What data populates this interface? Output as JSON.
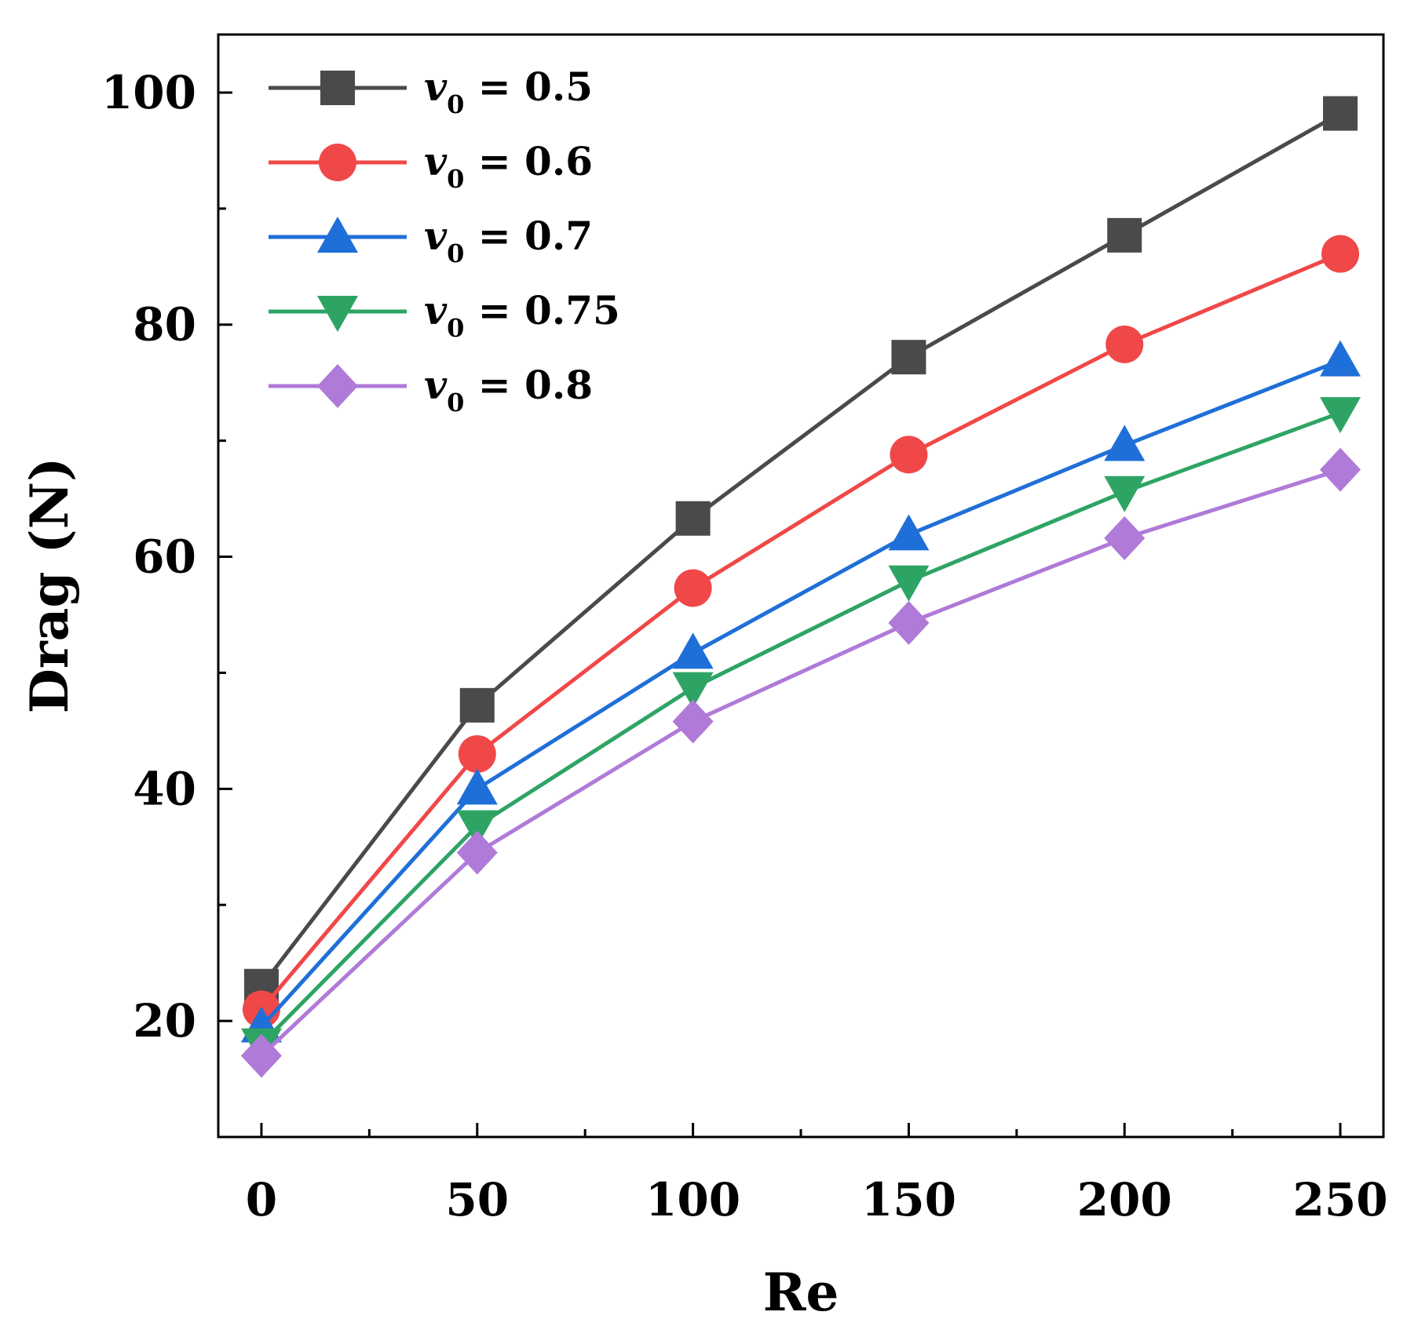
{
  "chart_data": {
    "type": "line",
    "title": "",
    "xlabel": "Re",
    "ylabel": "Drag (N)",
    "xlim": [
      -10,
      260
    ],
    "ylim": [
      10,
      105
    ],
    "x_ticks": [
      0,
      50,
      100,
      150,
      200,
      250
    ],
    "x_minor_ticks": [
      25,
      75,
      125,
      175,
      225
    ],
    "y_ticks": [
      20,
      40,
      60,
      80,
      100
    ],
    "y_minor_ticks": [
      30,
      50,
      70,
      90
    ],
    "grid": false,
    "legend_position": "top-left",
    "legend_prefix": "v",
    "legend_subscript": "0",
    "x": [
      0,
      50,
      100,
      150,
      200,
      250
    ],
    "series": [
      {
        "name": "v0 = 0.5",
        "label_value": "= 0.5",
        "color": "#4a4a4a",
        "marker": "square",
        "values": [
          23.0,
          47.2,
          63.3,
          77.2,
          87.7,
          98.2
        ]
      },
      {
        "name": "v0 = 0.6",
        "label_value": "= 0.6",
        "color": "#f04848",
        "marker": "circle",
        "values": [
          21.0,
          43.0,
          57.3,
          68.8,
          78.3,
          86.1
        ]
      },
      {
        "name": "v0 = 0.7",
        "label_value": "= 0.7",
        "color": "#1f6fd8",
        "marker": "triangle-up",
        "values": [
          19.5,
          40.0,
          51.7,
          61.9,
          69.6,
          76.9
        ]
      },
      {
        "name": "v0 = 0.75",
        "label_value": "= 0.75",
        "color": "#2ea464",
        "marker": "triangle-down",
        "values": [
          18.0,
          36.8,
          48.7,
          57.9,
          65.6,
          72.4
        ]
      },
      {
        "name": "v0 = 0.8",
        "label_value": "= 0.8",
        "color": "#b07ad8",
        "marker": "diamond",
        "values": [
          17.0,
          34.5,
          45.8,
          54.3,
          61.6,
          67.5
        ]
      }
    ]
  }
}
